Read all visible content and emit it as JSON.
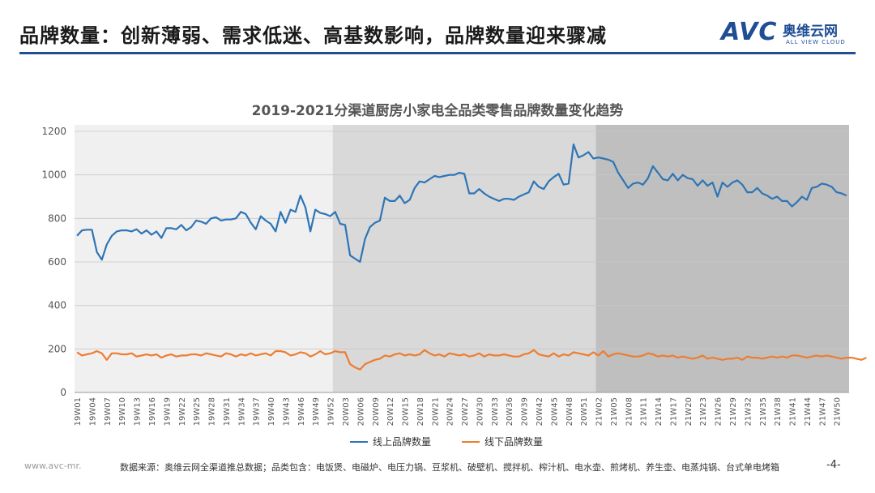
{
  "header": {
    "title": "品牌数量：创新薄弱、需求低迷、高基数影响，品牌数量迎来骤减",
    "logo_avc": "AVC",
    "logo_cn": "奥维云网",
    "logo_en": "ALL VIEW CLOUD"
  },
  "footer": {
    "url": "www.avc-mr.",
    "source": "数据来源：奥维云网全渠道推总数据；品类包含：电饭煲、电磁炉、电压力锅、豆浆机、破壁机、搅拌机、榨汁机、电水壶、煎烤机、养生壶、电蒸炖锅、台式单电烤箱",
    "page": "-4-"
  },
  "colors": {
    "accent": "#1f4e96",
    "online": "#2e75b6",
    "offline": "#ed7d31",
    "band_2019": "#f0f0f0",
    "band_2020": "#d9d9d9",
    "band_2021": "#bfbfbf"
  },
  "chart_data": {
    "type": "line",
    "title": "2019-2021分渠道厨房小家电全品类零售品牌数量变化趋势",
    "ylim": [
      0,
      1200
    ],
    "yticks": [
      0,
      200,
      400,
      600,
      800,
      1000,
      1200
    ],
    "x_range": [
      "19W01",
      "21W52"
    ],
    "x_tick_labels": [
      "19W01",
      "19W04",
      "19W07",
      "19W10",
      "19W13",
      "19W16",
      "19W19",
      "19W22",
      "19W25",
      "19W28",
      "19W31",
      "19W34",
      "19W37",
      "19W40",
      "19W43",
      "19W46",
      "19W49",
      "19W52",
      "20W03",
      "20W06",
      "20W09",
      "20W12",
      "20W15",
      "20W18",
      "20W21",
      "20W24",
      "20W27",
      "20W30",
      "20W33",
      "20W36",
      "20W39",
      "20W42",
      "20W45",
      "20W48",
      "20W51",
      "21W02",
      "21W05",
      "21W08",
      "21W11",
      "21W14",
      "21W17",
      "21W20",
      "21W23",
      "21W26",
      "21W29",
      "21W32",
      "21W35",
      "21W38",
      "21W41",
      "21W44",
      "21W47",
      "21W50"
    ],
    "background_bands": [
      "2019",
      "2020",
      "2021"
    ],
    "legend_position": "bottom",
    "grid": true,
    "series": [
      {
        "name": "线上品牌数量",
        "values": [
          720,
          745,
          748,
          748,
          645,
          610,
          680,
          720,
          740,
          745,
          745,
          740,
          750,
          730,
          745,
          725,
          740,
          710,
          755,
          755,
          750,
          770,
          745,
          760,
          790,
          785,
          775,
          800,
          805,
          790,
          795,
          795,
          800,
          830,
          820,
          780,
          750,
          810,
          790,
          775,
          740,
          830,
          780,
          840,
          830,
          905,
          850,
          740,
          840,
          825,
          820,
          810,
          830,
          775,
          770,
          630,
          615,
          600,
          705,
          760,
          780,
          790,
          895,
          880,
          880,
          905,
          870,
          885,
          940,
          970,
          965,
          980,
          995,
          990,
          995,
          1000,
          1000,
          1010,
          1005,
          915,
          915,
          935,
          915,
          900,
          890,
          880,
          890,
          890,
          885,
          900,
          910,
          920,
          970,
          945,
          935,
          970,
          990,
          1005,
          955,
          960,
          1140,
          1080,
          1090,
          1105,
          1075,
          1080,
          1075,
          1070,
          1060,
          1010,
          975,
          940,
          960,
          965,
          955,
          985,
          1040,
          1010,
          980,
          975,
          1005,
          975,
          1000,
          985,
          980,
          950,
          975,
          950,
          965,
          900,
          965,
          945,
          965,
          975,
          955,
          920,
          920,
          940,
          915,
          905,
          890,
          900,
          880,
          880,
          855,
          875,
          900,
          885,
          940,
          945,
          960,
          955,
          945,
          920,
          915,
          905
        ]
      },
      {
        "name": "线下品牌数量",
        "values": [
          185,
          170,
          175,
          180,
          190,
          180,
          150,
          180,
          180,
          175,
          175,
          180,
          165,
          170,
          175,
          170,
          175,
          160,
          170,
          175,
          165,
          170,
          170,
          175,
          175,
          170,
          180,
          175,
          170,
          165,
          180,
          175,
          165,
          175,
          170,
          180,
          170,
          175,
          180,
          170,
          190,
          190,
          185,
          170,
          175,
          185,
          180,
          165,
          175,
          190,
          175,
          180,
          190,
          185,
          185,
          130,
          115,
          105,
          130,
          140,
          150,
          155,
          170,
          165,
          175,
          180,
          170,
          175,
          170,
          175,
          195,
          180,
          170,
          175,
          165,
          180,
          175,
          170,
          175,
          165,
          170,
          180,
          165,
          175,
          170,
          170,
          175,
          170,
          165,
          165,
          175,
          180,
          195,
          175,
          170,
          165,
          180,
          165,
          175,
          170,
          185,
          180,
          175,
          170,
          185,
          170,
          190,
          165,
          175,
          180,
          175,
          170,
          165,
          165,
          170,
          180,
          175,
          165,
          170,
          165,
          170,
          160,
          165,
          160,
          155,
          160,
          170,
          155,
          160,
          155,
          150,
          155,
          155,
          160,
          150,
          165,
          160,
          160,
          155,
          160,
          165,
          160,
          165,
          160,
          170,
          170,
          165,
          160,
          165,
          170,
          165,
          170,
          165,
          160,
          155,
          160,
          160,
          155,
          150,
          160
        ]
      }
    ]
  }
}
